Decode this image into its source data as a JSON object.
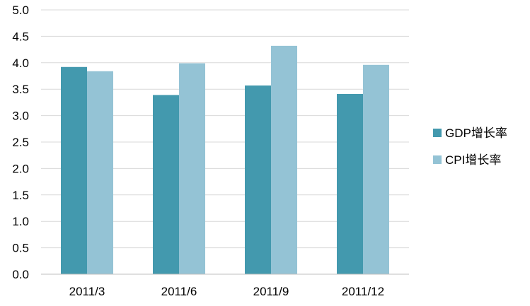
{
  "chart_data": {
    "type": "bar",
    "categories": [
      "2011/3",
      "2011/6",
      "2011/9",
      "2011/12"
    ],
    "series": [
      {
        "name": "GDP增长率",
        "color": "#4399ae",
        "values": [
          3.92,
          3.39,
          3.57,
          3.41
        ]
      },
      {
        "name": "CPI增长率",
        "color": "#94c3d5",
        "values": [
          3.84,
          3.99,
          4.32,
          3.96
        ]
      }
    ],
    "ylim": [
      0,
      5
    ],
    "yticks": [
      "0.0",
      "0.5",
      "1.0",
      "1.5",
      "2.0",
      "2.5",
      "3.0",
      "3.5",
      "4.0",
      "4.5",
      "5.0"
    ],
    "grid": true,
    "legend_position": "right",
    "title": "",
    "xlabel": "",
    "ylabel": ""
  }
}
